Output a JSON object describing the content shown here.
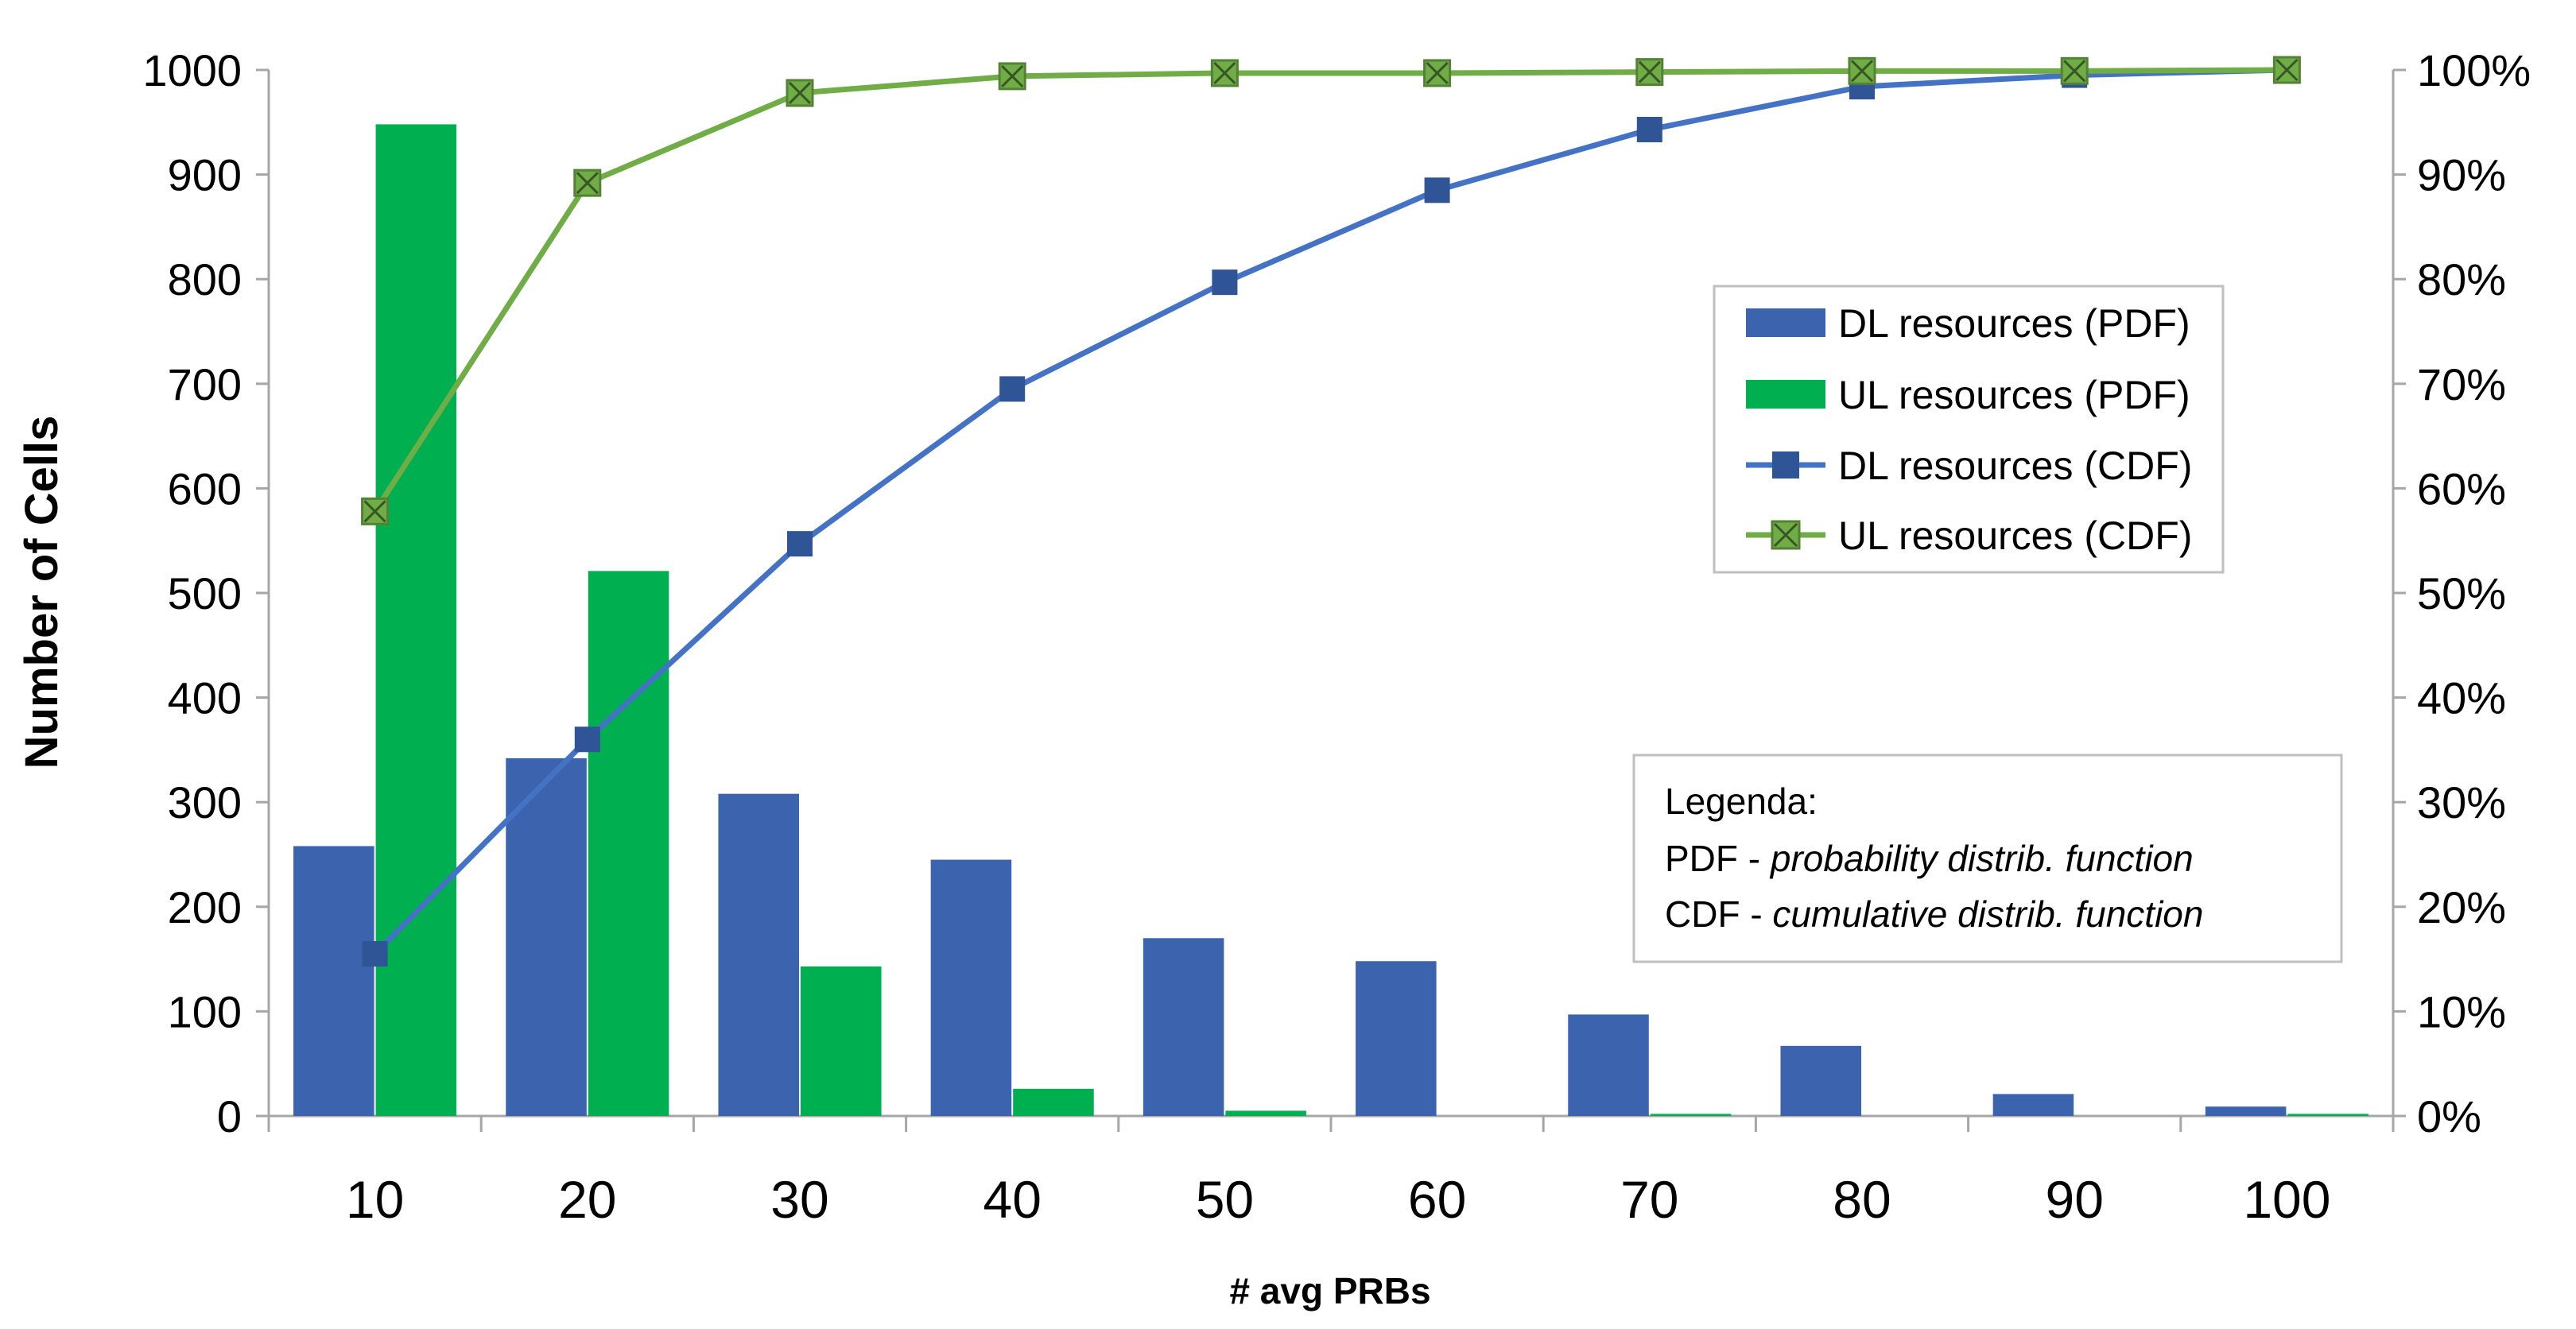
{
  "chart_data": {
    "type": "bar",
    "title": "",
    "xlabel": "# avg PRBs",
    "ylabel": "Number of Cells",
    "categories": [
      "10",
      "20",
      "30",
      "40",
      "50",
      "60",
      "70",
      "80",
      "90",
      "100"
    ],
    "ylim": [
      0,
      1000
    ],
    "yticks": [
      0,
      100,
      200,
      300,
      400,
      500,
      600,
      700,
      800,
      900,
      1000
    ],
    "y2lim": [
      0,
      100
    ],
    "y2ticks": [
      "0%",
      "10%",
      "20%",
      "30%",
      "40%",
      "50%",
      "60%",
      "70%",
      "80%",
      "90%",
      "100%"
    ],
    "grid": false,
    "series": [
      {
        "name": "DL resources (PDF)",
        "kind": "bar",
        "axis": "left",
        "color": "#3C64AE",
        "values": [
          258,
          342,
          308,
          245,
          170,
          148,
          97,
          67,
          21,
          9
        ]
      },
      {
        "name": "UL resources (PDF)",
        "kind": "bar",
        "axis": "left",
        "color": "#00B050",
        "values": [
          948,
          521,
          143,
          26,
          5,
          0,
          2,
          0,
          0,
          2
        ]
      },
      {
        "name": "DL resources (CDF)",
        "kind": "line",
        "axis": "right",
        "marker": "square",
        "color": "#4472C4",
        "marker_color": "#2F5597",
        "values": [
          15.5,
          36,
          54.7,
          69.5,
          79.7,
          88.5,
          94.3,
          98.4,
          99.5,
          100
        ]
      },
      {
        "name": "UL resources (CDF)",
        "kind": "line",
        "axis": "right",
        "marker": "square-x",
        "color": "#70AD47",
        "marker_color": "#548235",
        "values": [
          57.8,
          89.2,
          97.8,
          99.4,
          99.7,
          99.7,
          99.8,
          99.9,
          99.9,
          100
        ]
      }
    ],
    "legend_position": "right",
    "note": {
      "title": "Legenda:",
      "lines": [
        {
          "prefix": "PDF - ",
          "text": "probability distrib. function"
        },
        {
          "prefix": "CDF - ",
          "text": "cumulative distrib. function"
        }
      ]
    }
  }
}
